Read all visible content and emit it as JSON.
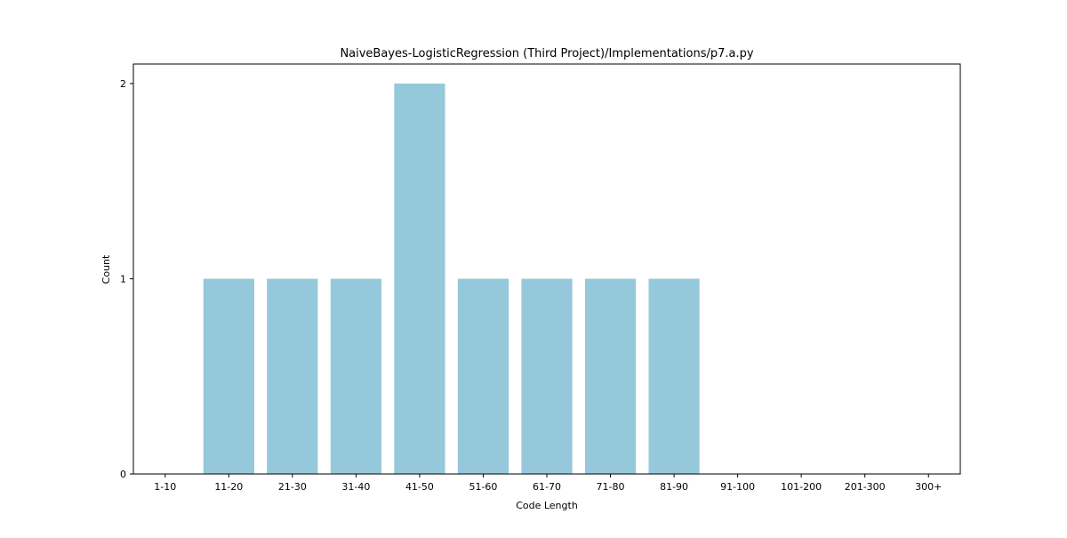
{
  "chart_data": {
    "type": "bar",
    "title": "NaiveBayes-LogisticRegression (Third Project)/Implementations/p7.a.py",
    "xlabel": "Code Length",
    "ylabel": "Count",
    "categories": [
      "1-10",
      "11-20",
      "21-30",
      "31-40",
      "41-50",
      "51-60",
      "61-70",
      "71-80",
      "81-90",
      "91-100",
      "101-200",
      "201-300",
      "300+"
    ],
    "values": [
      0,
      1,
      1,
      1,
      2,
      1,
      1,
      1,
      1,
      0,
      0,
      0,
      0
    ],
    "yticks": [
      0,
      1,
      2
    ],
    "ylim": [
      0,
      2.1
    ],
    "grid": false,
    "bar_color": "#96c8dc"
  }
}
